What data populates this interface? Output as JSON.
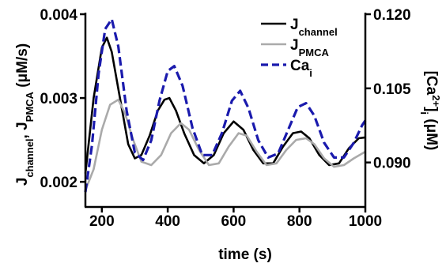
{
  "chart_data": {
    "type": "line",
    "xlabel": "time (s)",
    "ylabel_left": {
      "parts": [
        {
          "t": "J",
          "sub": false
        },
        {
          "t": "channel",
          "sub": true
        },
        {
          "t": ", J",
          "sub": false
        },
        {
          "t": "PMCA",
          "sub": true
        },
        {
          "t": " (μM/s)",
          "sub": false
        }
      ]
    },
    "ylabel_right": {
      "parts": [
        {
          "t": "[Ca",
          "pos": ""
        },
        {
          "t": "2+",
          "pos": "sup"
        },
        {
          "t": "]",
          "pos": ""
        },
        {
          "t": "i",
          "pos": "sub"
        },
        {
          "t": " (μM)",
          "pos": ""
        }
      ]
    },
    "xlim": [
      150,
      1000
    ],
    "ylim_left": [
      0.0017,
      0.004
    ],
    "ylim_right": [
      0.081,
      0.12
    ],
    "x_ticks": [
      200,
      400,
      600,
      800,
      1000
    ],
    "x_tick_labels": [
      "200",
      "400",
      "600",
      "800",
      "1000"
    ],
    "y_left_ticks": [
      0.002,
      0.003,
      0.004
    ],
    "y_left_tick_labels": [
      "0.002",
      "0.003",
      "0.004"
    ],
    "y_right_ticks": [
      0.09,
      0.105,
      0.12
    ],
    "y_right_tick_labels": [
      "0.090",
      "0.105",
      "0.120"
    ],
    "legend_position": "top-right",
    "series": [
      {
        "name": "Jchannel",
        "legend_parts": [
          {
            "t": "J",
            "sub": false
          },
          {
            "t": "channel",
            "sub": true
          }
        ],
        "axis": "left",
        "color": "#000000",
        "dash": "solid",
        "x": [
          150,
          175,
          200,
          215,
          230,
          255,
          280,
          300,
          320,
          345,
          370,
          390,
          405,
          425,
          450,
          480,
          510,
          540,
          570,
          600,
          630,
          660,
          690,
          720,
          750,
          780,
          805,
          830,
          860,
          890,
          920,
          950,
          980,
          1000
        ],
        "y": [
          0.0021,
          0.003,
          0.0036,
          0.00372,
          0.00355,
          0.003,
          0.00245,
          0.00228,
          0.00232,
          0.00255,
          0.00285,
          0.00298,
          0.003,
          0.00285,
          0.00258,
          0.00232,
          0.00222,
          0.00232,
          0.00258,
          0.00272,
          0.00262,
          0.00238,
          0.00222,
          0.00222,
          0.00242,
          0.00258,
          0.0026,
          0.00252,
          0.00232,
          0.0022,
          0.00222,
          0.0024,
          0.00252,
          0.00253
        ]
      },
      {
        "name": "JPMCA",
        "legend_parts": [
          {
            "t": "J",
            "sub": false
          },
          {
            "t": "PMCA",
            "sub": true
          }
        ],
        "axis": "left",
        "color": "#aaaaaa",
        "dash": "solid",
        "x": [
          150,
          175,
          200,
          225,
          250,
          270,
          295,
          320,
          350,
          380,
          410,
          440,
          465,
          495,
          525,
          555,
          585,
          615,
          640,
          670,
          700,
          730,
          760,
          790,
          820,
          845,
          875,
          905,
          935,
          965,
          1000
        ],
        "y": [
          0.0019,
          0.00215,
          0.00262,
          0.00292,
          0.00298,
          0.00282,
          0.0025,
          0.00224,
          0.0022,
          0.00232,
          0.00258,
          0.0027,
          0.00262,
          0.00238,
          0.0022,
          0.00222,
          0.00242,
          0.00258,
          0.00255,
          0.00236,
          0.0022,
          0.00222,
          0.00238,
          0.0025,
          0.00252,
          0.00245,
          0.00228,
          0.00218,
          0.0022,
          0.00228,
          0.00236
        ]
      },
      {
        "name": "Cai",
        "legend_parts": [
          {
            "t": "Ca",
            "sub": false
          },
          {
            "t": "i",
            "sub": true
          }
        ],
        "axis": "right",
        "color": "#1a1aad",
        "dash": "dashed",
        "x": [
          150,
          170,
          190,
          210,
          230,
          250,
          275,
          300,
          325,
          350,
          375,
          400,
          420,
          445,
          475,
          505,
          535,
          565,
          595,
          620,
          645,
          675,
          705,
          735,
          765,
          795,
          820,
          845,
          875,
          905,
          935,
          965,
          990,
          1000
        ],
        "y": [
          0.084,
          0.0935,
          0.108,
          0.117,
          0.119,
          0.1135,
          0.1005,
          0.092,
          0.0905,
          0.0945,
          0.1025,
          0.1085,
          0.1095,
          0.1055,
          0.097,
          0.0915,
          0.0915,
          0.096,
          0.1025,
          0.1045,
          0.101,
          0.0945,
          0.091,
          0.0918,
          0.0965,
          0.1012,
          0.102,
          0.0995,
          0.094,
          0.091,
          0.091,
          0.094,
          0.0975,
          0.0985
        ]
      }
    ]
  }
}
